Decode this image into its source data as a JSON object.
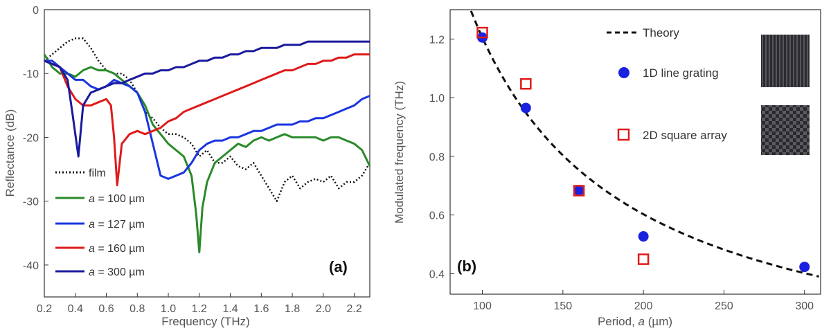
{
  "chart_data": [
    {
      "type": "line",
      "panel_label": "(a)",
      "xlabel": "Frequency (THz)",
      "ylabel": "Reflectance (dB)",
      "xlim": [
        0.2,
        2.3
      ],
      "ylim": [
        -45,
        0
      ],
      "x_ticks": [
        "0.2",
        "0.4",
        "0.6",
        "0.8",
        "1.0",
        "1.2",
        "1.4",
        "1.6",
        "1.8",
        "2.0",
        "2.2"
      ],
      "y_ticks": [
        "0",
        "-10",
        "-20",
        "-30",
        "-40"
      ],
      "series": [
        {
          "name": "film",
          "legend_prefix": "",
          "legend_suffix": "film",
          "color": "#111111",
          "style": "dotted",
          "x": [
            0.2,
            0.25,
            0.3,
            0.35,
            0.4,
            0.45,
            0.5,
            0.55,
            0.6,
            0.65,
            0.7,
            0.75,
            0.8,
            0.85,
            0.9,
            0.95,
            1.0,
            1.05,
            1.1,
            1.15,
            1.2,
            1.25,
            1.3,
            1.35,
            1.4,
            1.45,
            1.5,
            1.55,
            1.6,
            1.65,
            1.7,
            1.75,
            1.8,
            1.85,
            1.9,
            1.95,
            2.0,
            2.05,
            2.1,
            2.15,
            2.2,
            2.25,
            2.3
          ],
          "y": [
            -8,
            -7,
            -6,
            -5,
            -4.5,
            -4.5,
            -6,
            -8,
            -9.5,
            -10,
            -10,
            -11,
            -13,
            -16,
            -17,
            -18.5,
            -19.5,
            -19.5,
            -20,
            -21,
            -23,
            -22,
            -24,
            -24,
            -23,
            -24.5,
            -25,
            -24,
            -26,
            -28,
            -30,
            -27,
            -26,
            -28,
            -27,
            -26.5,
            -27,
            -26,
            -28,
            -27,
            -27,
            -26,
            -24
          ]
        },
        {
          "name": "a = 100 µm",
          "legend_prefix": "a",
          "legend_suffix": " = 100 µm",
          "color": "#2a8a2a",
          "style": "solid",
          "x": [
            0.2,
            0.25,
            0.3,
            0.35,
            0.4,
            0.45,
            0.5,
            0.55,
            0.6,
            0.65,
            0.7,
            0.75,
            0.8,
            0.85,
            0.9,
            0.95,
            1.0,
            1.05,
            1.1,
            1.15,
            1.18,
            1.2,
            1.22,
            1.25,
            1.3,
            1.35,
            1.4,
            1.45,
            1.5,
            1.55,
            1.6,
            1.65,
            1.7,
            1.75,
            1.8,
            1.85,
            1.9,
            1.95,
            2.0,
            2.05,
            2.1,
            2.15,
            2.2,
            2.25,
            2.3
          ],
          "y": [
            -7,
            -9,
            -10,
            -10,
            -10.5,
            -9.5,
            -9,
            -9.5,
            -9.5,
            -10,
            -11,
            -12,
            -13,
            -15,
            -18,
            -19.5,
            -21,
            -22,
            -23,
            -26,
            -32,
            -38,
            -31,
            -27,
            -24,
            -23,
            -22,
            -21,
            -21.5,
            -20.5,
            -20,
            -20.5,
            -20,
            -19.5,
            -20,
            -20,
            -20,
            -20,
            -20.5,
            -20,
            -20,
            -20.5,
            -21,
            -22,
            -24.5
          ]
        },
        {
          "name": "a = 127 µm",
          "legend_prefix": "a",
          "legend_suffix": " = 127 µm",
          "color": "#1a35e0",
          "style": "solid",
          "x": [
            0.2,
            0.25,
            0.3,
            0.35,
            0.4,
            0.45,
            0.5,
            0.55,
            0.6,
            0.65,
            0.7,
            0.75,
            0.8,
            0.85,
            0.9,
            0.95,
            1.0,
            1.05,
            1.1,
            1.15,
            1.2,
            1.25,
            1.3,
            1.35,
            1.4,
            1.45,
            1.5,
            1.55,
            1.6,
            1.65,
            1.7,
            1.75,
            1.8,
            1.85,
            1.9,
            1.95,
            2.0,
            2.05,
            2.1,
            2.15,
            2.2,
            2.25,
            2.3
          ],
          "y": [
            -8,
            -8,
            -9,
            -10,
            -11,
            -11,
            -12,
            -12.5,
            -12,
            -11,
            -11.5,
            -12,
            -13,
            -16,
            -21,
            -26,
            -26.5,
            -26,
            -25.5,
            -24,
            -22,
            -21,
            -20.5,
            -20.5,
            -20,
            -20,
            -19.5,
            -19,
            -19,
            -18.5,
            -18,
            -18,
            -18,
            -17.5,
            -17.5,
            -17,
            -17,
            -16.5,
            -16,
            -15.5,
            -15,
            -14,
            -13.5
          ]
        },
        {
          "name": "a = 160 µm",
          "legend_prefix": "a",
          "legend_suffix": " = 160 µm",
          "color": "#e01a1a",
          "style": "solid",
          "x": [
            0.2,
            0.25,
            0.3,
            0.35,
            0.4,
            0.45,
            0.5,
            0.55,
            0.6,
            0.63,
            0.65,
            0.67,
            0.7,
            0.75,
            0.8,
            0.85,
            0.9,
            0.95,
            1.0,
            1.05,
            1.1,
            1.15,
            1.2,
            1.25,
            1.3,
            1.35,
            1.4,
            1.45,
            1.5,
            1.55,
            1.6,
            1.65,
            1.7,
            1.75,
            1.8,
            1.85,
            1.9,
            1.95,
            2.0,
            2.05,
            2.1,
            2.15,
            2.2,
            2.25,
            2.3
          ],
          "y": [
            -8,
            -8.5,
            -9,
            -12,
            -14,
            -15,
            -15,
            -14.5,
            -14,
            -15,
            -20,
            -27.5,
            -21,
            -19.5,
            -19,
            -19.5,
            -19,
            -18.5,
            -17.5,
            -17,
            -16,
            -15.5,
            -15,
            -14.5,
            -14,
            -13.5,
            -13,
            -12.5,
            -12,
            -11.5,
            -11,
            -10.5,
            -10,
            -9.5,
            -9.5,
            -9,
            -8.5,
            -8.5,
            -8,
            -8,
            -7.5,
            -7.5,
            -7,
            -7,
            -7
          ]
        },
        {
          "name": "a = 300 µm",
          "legend_prefix": "a",
          "legend_suffix": " = 300 µm",
          "color": "#1a1a9e",
          "style": "solid",
          "x": [
            0.2,
            0.25,
            0.3,
            0.35,
            0.38,
            0.42,
            0.45,
            0.5,
            0.55,
            0.6,
            0.65,
            0.7,
            0.75,
            0.8,
            0.85,
            0.9,
            0.95,
            1.0,
            1.05,
            1.1,
            1.15,
            1.2,
            1.25,
            1.3,
            1.35,
            1.4,
            1.45,
            1.5,
            1.55,
            1.6,
            1.65,
            1.7,
            1.75,
            1.8,
            1.85,
            1.9,
            1.95,
            2.0,
            2.05,
            2.1,
            2.15,
            2.2,
            2.25,
            2.3
          ],
          "y": [
            -8,
            -8.5,
            -9,
            -11,
            -16,
            -23,
            -15,
            -13,
            -12.5,
            -12,
            -11.5,
            -11.5,
            -11,
            -10.5,
            -10,
            -10,
            -9.5,
            -9.5,
            -9,
            -9,
            -8.5,
            -8,
            -8,
            -7.5,
            -7.5,
            -7,
            -7,
            -6.5,
            -6.5,
            -6,
            -6,
            -6,
            -5.5,
            -5.5,
            -5.5,
            -5,
            -5,
            -5,
            -5,
            -5,
            -5,
            -5,
            -5,
            -5
          ]
        }
      ]
    },
    {
      "type": "scatter",
      "panel_label": "(b)",
      "xlabel_prefix": "Period, ",
      "xlabel_var": "a",
      "xlabel_suffix": " (µm)",
      "ylabel": "Modulated frequency (THz)",
      "xlim": [
        80,
        310
      ],
      "ylim": [
        0.33,
        1.3
      ],
      "x_ticks": [
        "100",
        "150",
        "200",
        "250",
        "300"
      ],
      "y_ticks": [
        "0.4",
        "0.6",
        "0.8",
        "1.0",
        "1.2"
      ],
      "series": [
        {
          "name": "Theory",
          "color": "#111111",
          "style": "dashed",
          "kind": "curve",
          "k": 120.5
        },
        {
          "name": "1D line grating",
          "color": "#1a22e0",
          "kind": "circle",
          "x": [
            100,
            127,
            160,
            200,
            300
          ],
          "y": [
            1.205,
            0.965,
            0.683,
            0.527,
            0.423
          ]
        },
        {
          "name": "2D square array",
          "color": "#e01a1a",
          "kind": "square",
          "x": [
            100,
            127,
            160,
            200
          ],
          "y": [
            1.222,
            1.047,
            0.683,
            0.449
          ]
        }
      ]
    }
  ]
}
